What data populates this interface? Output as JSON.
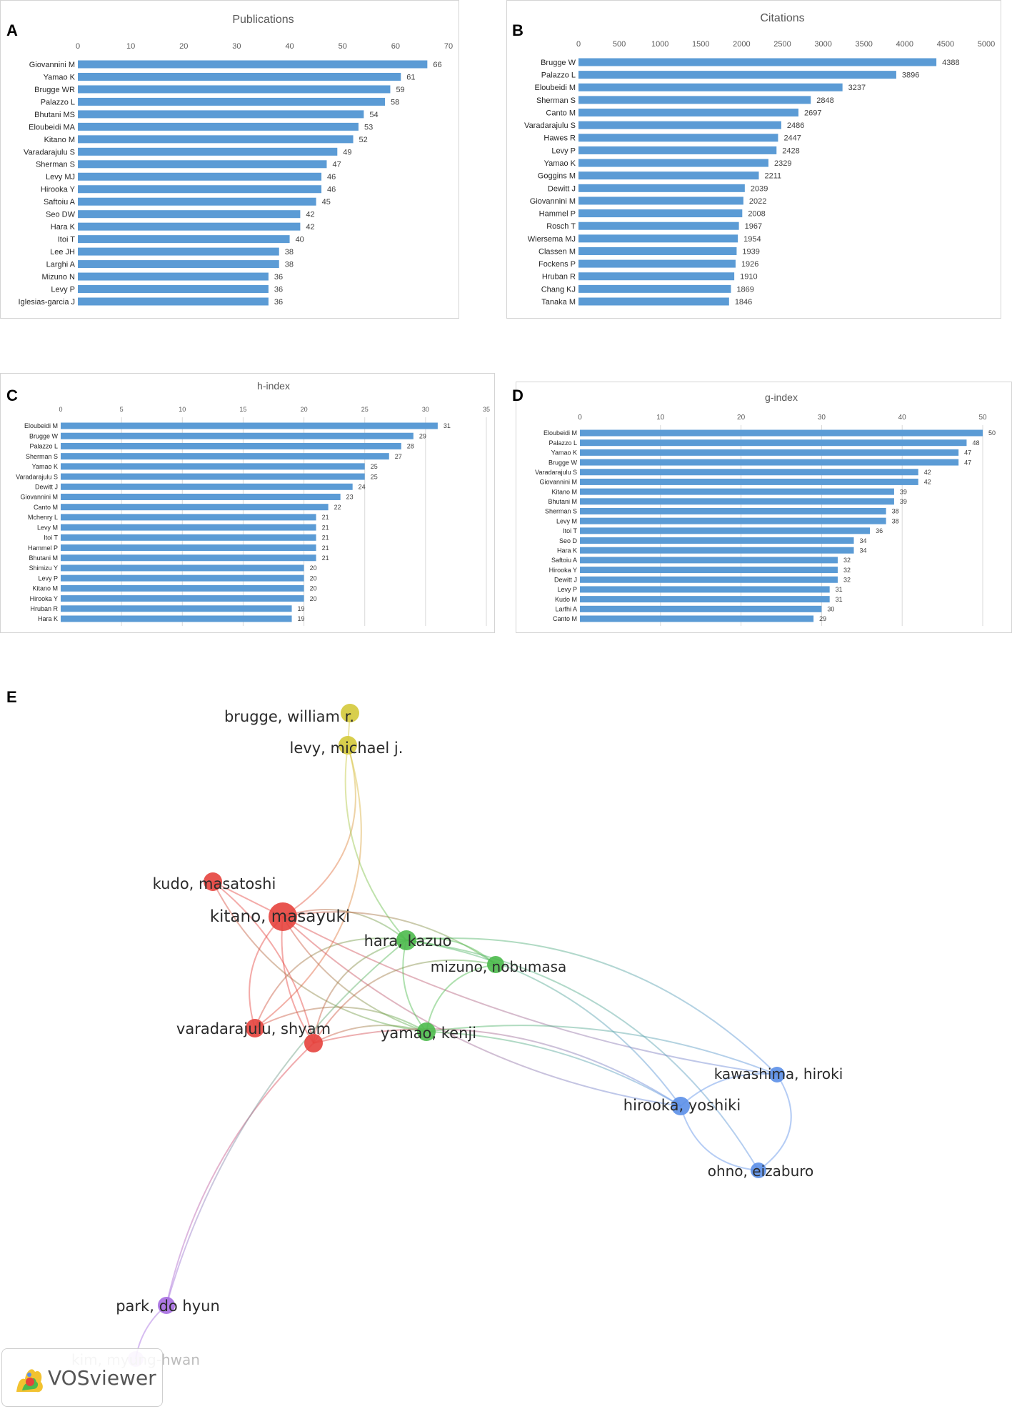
{
  "panel_labels": {
    "a": "A",
    "b": "B",
    "c": "C",
    "d": "D",
    "e": "E"
  },
  "chart_data": [
    {
      "type": "bar",
      "id": "publications",
      "title": "Publications",
      "orientation": "horizontal",
      "xlim": [
        0,
        70
      ],
      "ticks": [
        0,
        10,
        20,
        30,
        40,
        50,
        60,
        70
      ],
      "categories": [
        "Giovannini M",
        "Yamao K",
        "Brugge WR",
        "Palazzo L",
        "Bhutani MS",
        "Eloubeidi MA",
        "Kitano M",
        "Varadarajulu S",
        "Sherman S",
        "Levy MJ",
        "Hirooka Y",
        "Saftoiu A",
        "Seo DW",
        "Hara K",
        "Itoi T",
        "Lee JH",
        "Larghi A",
        "Mizuno N",
        "Levy P",
        "Iglesias-garcia J"
      ],
      "values": [
        66,
        61,
        59,
        58,
        54,
        53,
        52,
        49,
        47,
        46,
        46,
        45,
        42,
        42,
        40,
        38,
        38,
        36,
        36,
        36
      ],
      "color": "#5b9bd5"
    },
    {
      "type": "bar",
      "id": "citations",
      "title": "Citations",
      "orientation": "horizontal",
      "xlim": [
        0,
        5000
      ],
      "ticks": [
        0,
        500,
        1000,
        1500,
        2000,
        2500,
        3000,
        3500,
        4000,
        4500,
        5000
      ],
      "categories": [
        "Brugge W",
        "Palazzo L",
        "Eloubeidi M",
        "Sherman S",
        "Canto M",
        "Varadarajulu S",
        "Hawes R",
        "Levy P",
        "Yamao K",
        "Goggins M",
        "Dewitt J",
        "Giovannini M",
        "Hammel P",
        "Rosch T",
        "Wiersema MJ",
        "Classen M",
        "Fockens P",
        "Hruban R",
        "Chang KJ",
        "Tanaka M"
      ],
      "values": [
        4388,
        3896,
        3237,
        2848,
        2697,
        2486,
        2447,
        2428,
        2329,
        2211,
        2039,
        2022,
        2008,
        1967,
        1954,
        1939,
        1926,
        1910,
        1869,
        1846
      ],
      "color": "#5b9bd5"
    },
    {
      "type": "bar",
      "id": "h-index",
      "title": "h-index",
      "orientation": "horizontal",
      "xlim": [
        0,
        35
      ],
      "ticks": [
        0,
        5,
        10,
        15,
        20,
        25,
        30,
        35
      ],
      "grid": true,
      "categories": [
        "Eloubeidi M",
        "Brugge W",
        "Palazzo L",
        "Sherman S",
        "Yamao K",
        "Varadarajulu S",
        "Dewitt J",
        "Giovannini M",
        "Canto M",
        "Mchenry L",
        "Levy M",
        "Itoi T",
        "Hammel P",
        "Bhutani M",
        "Shimizu Y",
        "Levy P",
        "Kitano M",
        "Hirooka Y",
        "Hruban R",
        "Hara K"
      ],
      "values": [
        31,
        29,
        28,
        27,
        25,
        25,
        24,
        23,
        22,
        21,
        21,
        21,
        21,
        21,
        20,
        20,
        20,
        20,
        19,
        19
      ],
      "color": "#5b9bd5"
    },
    {
      "type": "bar",
      "id": "g-index",
      "title": "g-index",
      "orientation": "horizontal",
      "xlim": [
        0,
        50
      ],
      "ticks": [
        0,
        10,
        20,
        30,
        40,
        50
      ],
      "grid": true,
      "categories": [
        "Eloubeidi M",
        "Palazzo L",
        "Yamao K",
        "Brugge W",
        "Varadarajulu S",
        "Giovannini M",
        "Kitano M",
        "Bhutani M",
        "Sherman S",
        "Levy M",
        "Itoi T",
        "Seo D",
        "Hara K",
        "Saftoiu A",
        "Hirooka Y",
        "Dewitt J",
        "Levy P",
        "Kudo M",
        "Larfhi A",
        "Canto M"
      ],
      "values": [
        50,
        48,
        47,
        47,
        42,
        42,
        39,
        39,
        38,
        38,
        36,
        34,
        34,
        32,
        32,
        32,
        31,
        31,
        30,
        29
      ],
      "color": "#5b9bd5"
    }
  ],
  "network": {
    "software": "VOSviewer",
    "nodes": [
      {
        "label": "brugge, william r.",
        "cluster": "yellow"
      },
      {
        "label": "levy, michael j.",
        "cluster": "yellow"
      },
      {
        "label": "kudo, masatoshi",
        "cluster": "red"
      },
      {
        "label": "kitano, masayuki",
        "cluster": "red"
      },
      {
        "label": "varadarajulu, shyam",
        "cluster": "red"
      },
      {
        "label": "",
        "cluster": "red"
      },
      {
        "label": "hara, kazuo",
        "cluster": "green"
      },
      {
        "label": "mizuno, nobumasa",
        "cluster": "green"
      },
      {
        "label": "yamao, kenji",
        "cluster": "green"
      },
      {
        "label": "kawashima, hiroki",
        "cluster": "blue"
      },
      {
        "label": "hirooka, yoshiki",
        "cluster": "blue"
      },
      {
        "label": "ohno, eizaburo",
        "cluster": "blue"
      },
      {
        "label": "park, do hyun",
        "cluster": "purple"
      },
      {
        "label": "kim, myung-hwan",
        "cluster": "purple"
      }
    ],
    "cluster_colors": {
      "yellow": "#d4c93a",
      "red": "#e5433d",
      "green": "#4cba4c",
      "blue": "#5b8fe8",
      "purple": "#a56be0"
    }
  }
}
